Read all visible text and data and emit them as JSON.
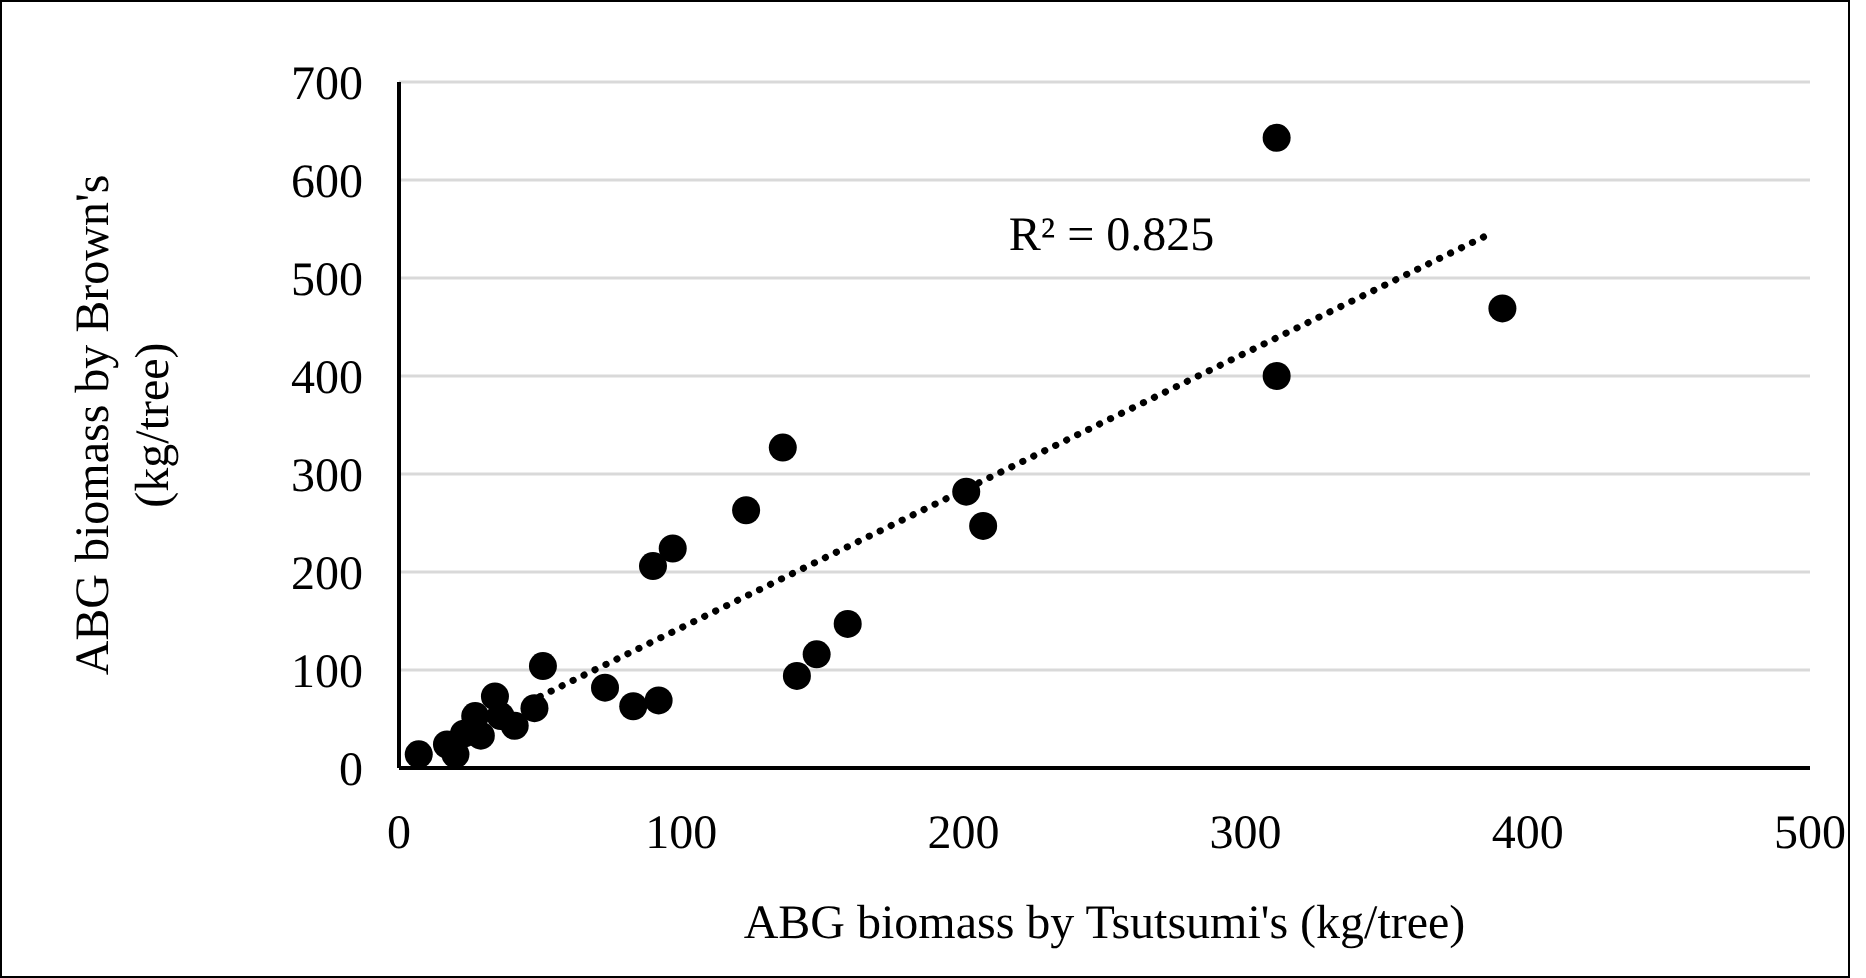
{
  "chart_data": {
    "type": "scatter",
    "xlabel": "ABG biomass by Tsutsumi's (kg/tree)",
    "ylabel": "ABG biomass by Brown's (kg/tree)",
    "annotations": [
      "R² = 0.825"
    ],
    "xlim": [
      0,
      500
    ],
    "xticks": [
      0,
      100,
      200,
      300,
      400,
      500
    ],
    "ylim": [
      0,
      700
    ],
    "yticks": [
      0,
      100,
      200,
      300,
      400,
      500,
      600,
      700
    ],
    "grid": "y",
    "series": [
      {
        "color": "#000000",
        "marker": "circle",
        "x": [
          311,
          311,
          391,
          201,
          207,
          136,
          123,
          97,
          90,
          159,
          148,
          141,
          51,
          73,
          83,
          92,
          48,
          41,
          34,
          29,
          27,
          36,
          7,
          17,
          20,
          23
        ],
        "values": [
          643,
          400,
          469,
          282,
          247,
          327,
          263,
          224,
          206,
          147,
          116,
          94,
          104,
          82,
          63,
          69,
          61,
          43,
          73,
          33,
          53,
          53,
          14,
          24,
          14,
          35
        ]
      },
      {
        "type": "line",
        "color": "#000000",
        "line_style": "dotted",
        "marker": "none",
        "x": [
          50,
          388
        ],
        "values": [
          73,
          547
        ]
      }
    ]
  }
}
